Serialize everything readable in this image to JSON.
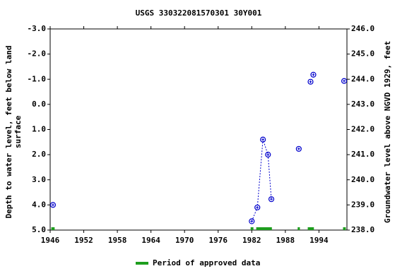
{
  "chart_data": {
    "type": "scatter",
    "title": "USGS 330322081570301 30Y001",
    "y_label": [
      "Depth to water level, feet below land",
      "surface"
    ],
    "y2_label": "Groundwater level above NGVD 1929, feet",
    "x": [
      1946.5,
      1982.0,
      1983.0,
      1984.0,
      1984.9,
      1985.5,
      1990.4,
      1992.5,
      1993.0,
      1998.5
    ],
    "series": [
      {
        "name": "Depth to water level",
        "color": "#0000cc",
        "values": [
          4.0,
          4.65,
          4.1,
          1.4,
          2.0,
          3.77,
          1.77,
          -0.9,
          -1.18,
          -0.93
        ]
      }
    ],
    "xlim": [
      1946,
      1999
    ],
    "xticks": [
      1946,
      1952,
      1958,
      1964,
      1970,
      1976,
      1982,
      1988,
      1994
    ],
    "ylim": [
      5.0,
      -3.0
    ],
    "yticks": [
      {
        "value": -3,
        "label": "-3.0"
      },
      {
        "value": -2,
        "label": "-2.0"
      },
      {
        "value": -1,
        "label": "-1.0"
      },
      {
        "value": 0,
        "label": "0.0"
      },
      {
        "value": 1,
        "label": "1.0"
      },
      {
        "value": 2,
        "label": "2.0"
      },
      {
        "value": 3,
        "label": "3.0"
      },
      {
        "value": 4,
        "label": "4.0"
      },
      {
        "value": 5,
        "label": "5.0"
      }
    ],
    "y2lim": [
      238.0,
      246.0
    ],
    "y2ticks": [
      {
        "value": 246,
        "label": "246.0"
      },
      {
        "value": 245,
        "label": "245.0"
      },
      {
        "value": 244,
        "label": "244.0"
      },
      {
        "value": 243,
        "label": "243.0"
      },
      {
        "value": 242,
        "label": "242.0"
      },
      {
        "value": 241,
        "label": "241.0"
      },
      {
        "value": 240,
        "label": "240.0"
      },
      {
        "value": 239,
        "label": "239.0"
      },
      {
        "value": 238,
        "label": "238.0"
      }
    ],
    "approved_periods": [
      [
        1946.2,
        1946.8
      ],
      [
        1981.8,
        1982.3
      ],
      [
        1982.8,
        1985.6
      ],
      [
        1990.2,
        1990.6
      ],
      [
        1992.0,
        1993.1
      ],
      [
        1998.3,
        1998.8
      ]
    ],
    "approved_color": "#1e9e1e",
    "legend": "Period of approved data"
  }
}
